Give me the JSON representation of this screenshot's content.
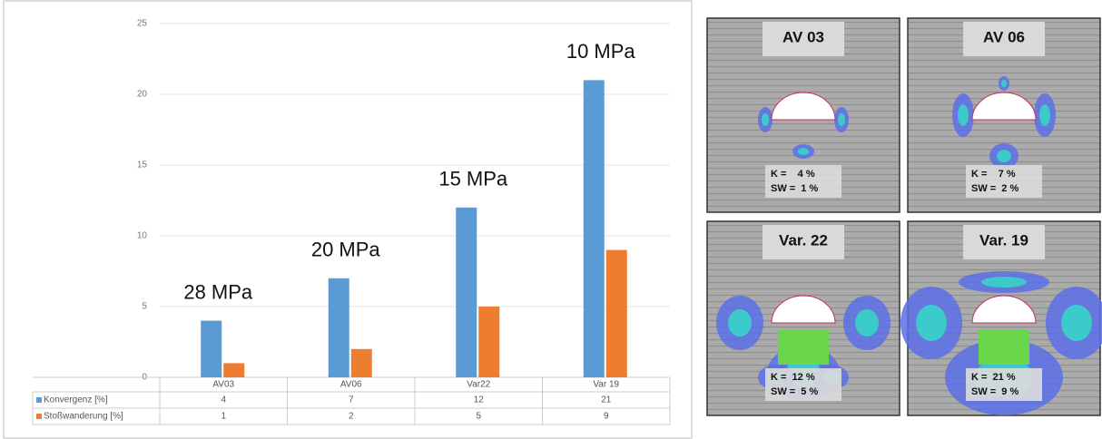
{
  "chart_data": {
    "type": "bar",
    "categories": [
      "AV03",
      "AV06",
      "Var22",
      "Var 19"
    ],
    "series": [
      {
        "name": "Konvergenz [%]",
        "color": "#5b9bd5",
        "values": [
          4,
          7,
          12,
          21
        ]
      },
      {
        "name": "Stoßwanderung [%]",
        "color": "#ed7d31",
        "values": [
          1,
          2,
          5,
          9
        ]
      }
    ],
    "annotations": [
      "28 MPa",
      "20 MPa",
      "15 MPa",
      "10 MPa"
    ],
    "ylim": [
      0,
      25
    ],
    "yticks": [
      0,
      5,
      10,
      15,
      20,
      25
    ],
    "grid": true
  },
  "panels": [
    {
      "title": "AV 03",
      "k": "K =    4 %",
      "sw": "SW =  1 %"
    },
    {
      "title": "AV 06",
      "k": "K =    7 %",
      "sw": "SW =  2 %"
    },
    {
      "title": "Var. 22",
      "k": "K =  12 %",
      "sw": "SW =  5 %"
    },
    {
      "title": "Var. 19",
      "k": "K =  21 %",
      "sw": "SW =  9 %"
    }
  ]
}
